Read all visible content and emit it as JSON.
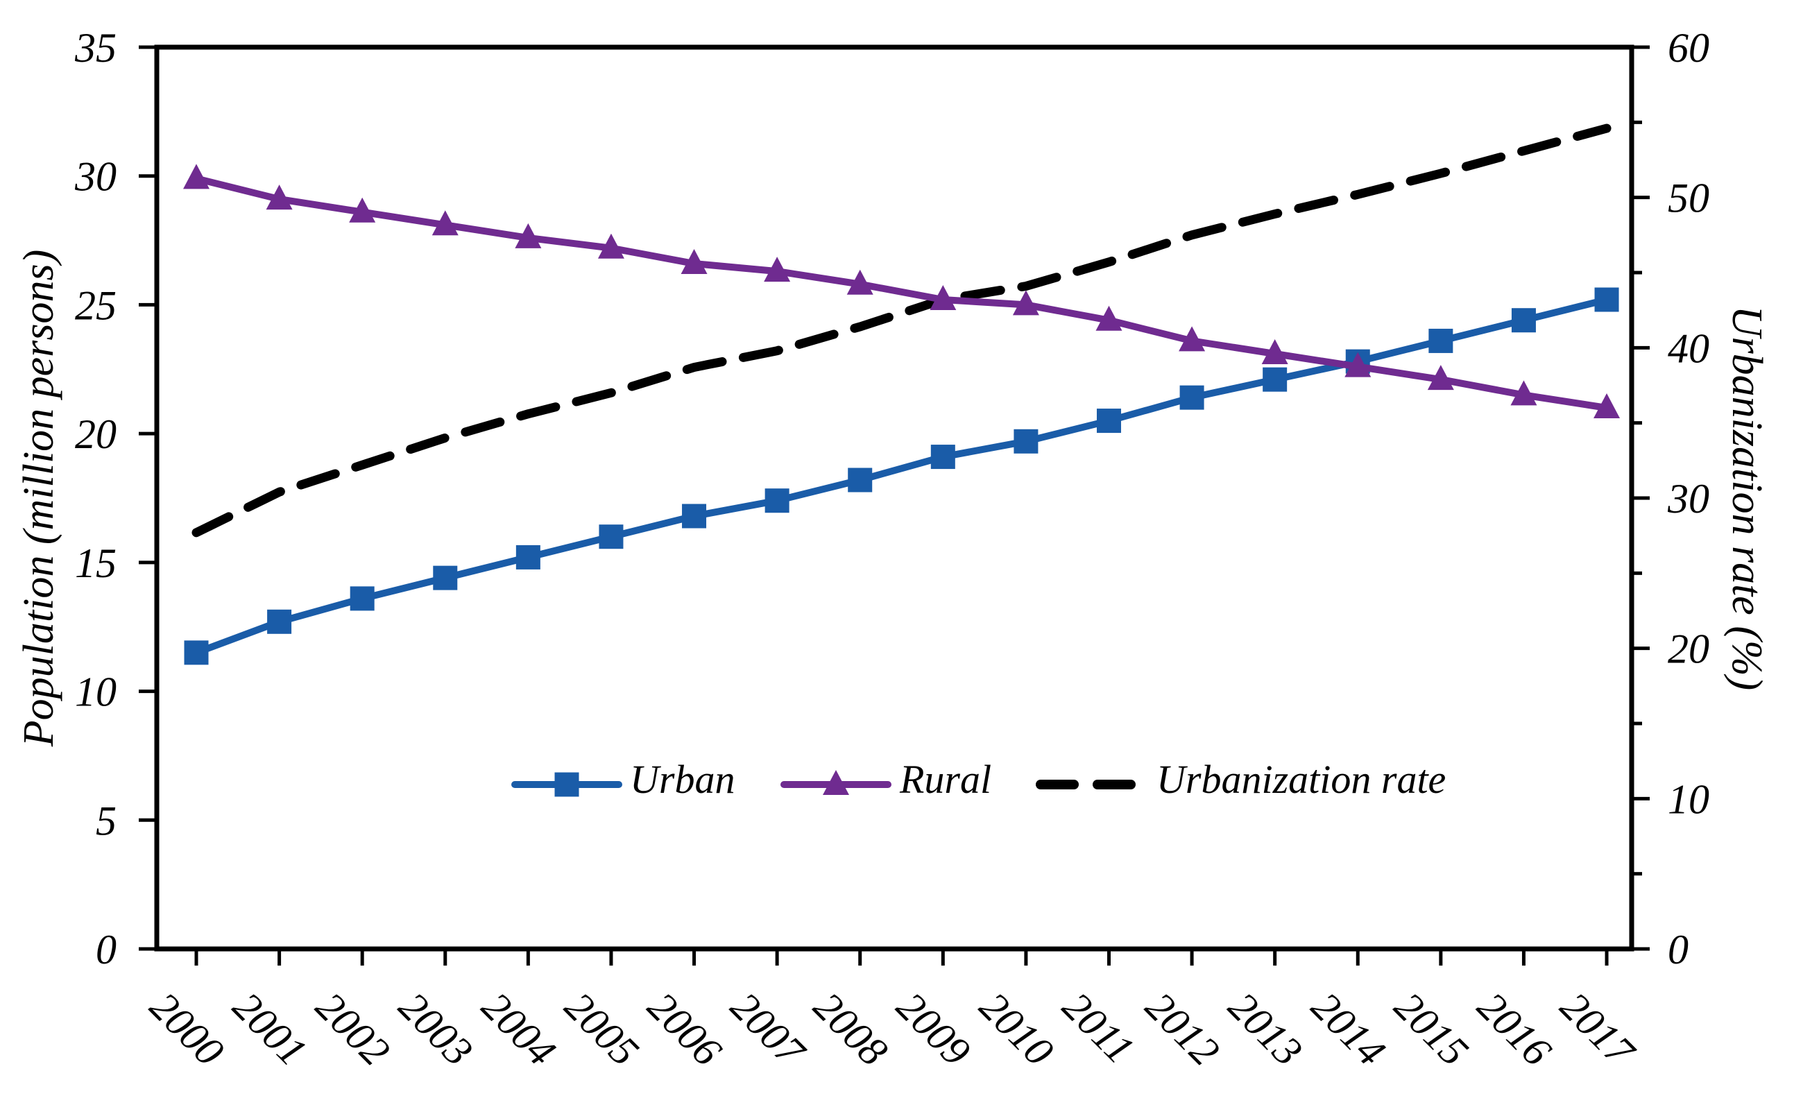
{
  "chart_data": {
    "type": "line",
    "title": "",
    "x_categories": [
      "2000",
      "2001",
      "2002",
      "2003",
      "2004",
      "2005",
      "2006",
      "2007",
      "2008",
      "2009",
      "2010",
      "2011",
      "2012",
      "2013",
      "2014",
      "2015",
      "2016",
      "2017"
    ],
    "series": [
      {
        "name": "Urban",
        "axis": "left",
        "color": "#1A5CA8",
        "marker": "square",
        "line_style": "solid",
        "values": [
          11.5,
          12.7,
          13.6,
          14.4,
          15.2,
          16.0,
          16.8,
          17.4,
          18.2,
          19.1,
          19.7,
          20.5,
          21.4,
          22.1,
          22.8,
          23.6,
          24.4,
          25.2
        ]
      },
      {
        "name": "Rural",
        "axis": "left",
        "color": "#6F2B90",
        "marker": "triangle",
        "line_style": "solid",
        "values": [
          29.9,
          29.1,
          28.6,
          28.1,
          27.6,
          27.2,
          26.6,
          26.3,
          25.8,
          25.2,
          25.0,
          24.4,
          23.6,
          23.1,
          22.6,
          22.1,
          21.5,
          21.0
        ]
      },
      {
        "name": "Urbanization rate",
        "axis": "right",
        "color": "#000000",
        "marker": "none",
        "line_style": "dashed",
        "values": [
          27.7,
          30.4,
          32.2,
          34.0,
          35.6,
          37.0,
          38.7,
          39.8,
          41.4,
          43.2,
          44.1,
          45.7,
          47.5,
          48.9,
          50.2,
          51.6,
          53.1,
          54.6
        ]
      }
    ],
    "left_axis": {
      "label": "Population (million persons)",
      "min": 0,
      "max": 35,
      "ticks": [
        0,
        5,
        10,
        15,
        20,
        25,
        30,
        35
      ]
    },
    "right_axis": {
      "label": "Urbanization rate (%)",
      "min": 0,
      "max": 60,
      "ticks": [
        0,
        10,
        20,
        30,
        40,
        50,
        60
      ],
      "minor_ticks": [
        5,
        15,
        25,
        35,
        45,
        55
      ]
    },
    "legend": {
      "position": "inside-bottom-center",
      "items": [
        "Urban",
        "Rural",
        "Urbanization rate"
      ]
    },
    "grid": false
  }
}
